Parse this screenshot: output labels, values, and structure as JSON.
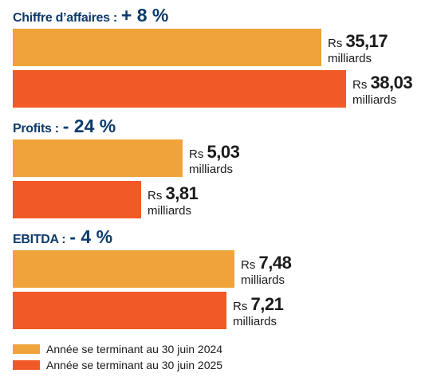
{
  "colors": {
    "y2024": "#efa33a",
    "y2025": "#f15a27",
    "title": "#0c3b6b"
  },
  "chart_data": {
    "type": "bar",
    "orientation": "horizontal",
    "currency": "Rs",
    "unit": "milliards",
    "groups": [
      {
        "metric": "Chiffre d’affaires :",
        "change": "+ 8 %",
        "values": [
          35.17,
          38.03
        ],
        "labels": [
          "35,17",
          "38,03"
        ]
      },
      {
        "metric": "Profits :",
        "change": "- 24 %",
        "values": [
          5.03,
          3.81
        ],
        "labels": [
          "5,03",
          "3,81"
        ]
      },
      {
        "metric": "EBITDA :",
        "change": "- 4 %",
        "values": [
          7.48,
          7.21
        ],
        "labels": [
          "7,48",
          "7,21"
        ]
      }
    ],
    "series": [
      {
        "name": "Année se terminant au 30 juin 2024"
      },
      {
        "name": "Année se terminant au 30 juin 2025"
      }
    ],
    "legend_position": "bottom-left"
  }
}
